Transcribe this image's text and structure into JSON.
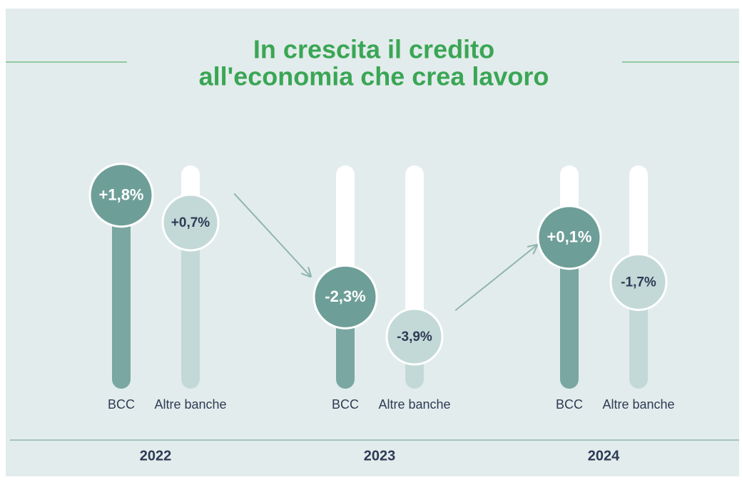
{
  "chart_data": {
    "type": "slider",
    "title": [
      "In crescita il credito",
      "all'economia che crea lavoro"
    ],
    "categories": [
      "2022",
      "2023",
      "2024"
    ],
    "series": [
      {
        "name": "BCC",
        "color": "#7aa7a1",
        "values": [
          1.8,
          -2.3,
          0.1
        ],
        "value_labels": [
          "+1,8%",
          "-2,3%",
          "+0,1%"
        ]
      },
      {
        "name": "Altre banche",
        "color": "#c3d9d7",
        "values": [
          0.7,
          -3.9,
          -1.7
        ],
        "value_labels": [
          "+0,7%",
          "-3,9%",
          "-1,7%"
        ]
      }
    ],
    "ylim": [
      -6,
      3
    ]
  }
}
